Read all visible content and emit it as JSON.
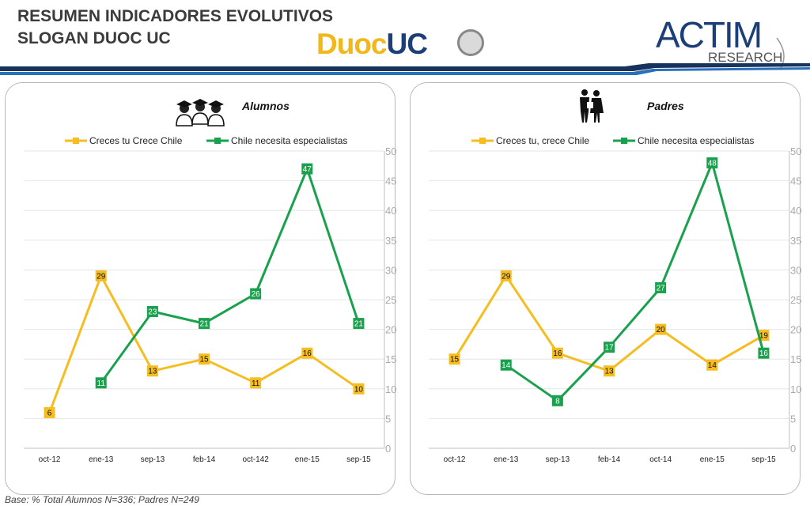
{
  "header": {
    "title_line1": "RESUMEN INDICADORES EVOLUTIVOS",
    "title_line2": "SLOGAN DUOC UC",
    "duoc_logo_part1": "Duoc",
    "duoc_logo_part2": "UC",
    "actim_logo_main": "ACTIM",
    "actim_logo_sub": "RESEARCH"
  },
  "footer": {
    "base_note": "Base: % Total Alumnos  N=336;  Padres N=249"
  },
  "colors": {
    "yellow": "#f5bd1f",
    "green": "#1aa14e",
    "navy": "#16335e",
    "accent_blue": "#2a6fba"
  },
  "chart_data": [
    {
      "type": "line",
      "title": "Alumnos",
      "categories": [
        "oct-12",
        "ene-13",
        "sep-13",
        "feb-14",
        "oct-142",
        "ene-15",
        "sep-15"
      ],
      "series": [
        {
          "name": "Creces tu Crece Chile",
          "color": "#f5bd1f",
          "values": [
            6,
            29,
            13,
            15,
            11,
            16,
            10
          ]
        },
        {
          "name": "Chile necesita especialistas",
          "color": "#1aa14e",
          "values": [
            null,
            11,
            23,
            21,
            26,
            47,
            21
          ]
        }
      ],
      "ylim": [
        0,
        50
      ],
      "yticks": [
        0,
        5,
        10,
        15,
        20,
        25,
        30,
        35,
        40,
        45,
        50
      ],
      "grid": true,
      "legend": "top"
    },
    {
      "type": "line",
      "title": "Padres",
      "categories": [
        "oct-12",
        "ene-13",
        "sep-13",
        "feb-14",
        "oct-14",
        "ene-15",
        "sep-15"
      ],
      "series": [
        {
          "name": "Creces tu, crece Chile",
          "color": "#f5bd1f",
          "values": [
            15,
            29,
            16,
            13,
            20,
            14,
            19
          ]
        },
        {
          "name": "Chile necesita especialistas",
          "color": "#1aa14e",
          "values": [
            null,
            14,
            8,
            17,
            27,
            48,
            16
          ]
        }
      ],
      "ylim": [
        0,
        50
      ],
      "yticks": [
        0,
        5,
        10,
        15,
        20,
        25,
        30,
        35,
        40,
        45,
        50
      ],
      "grid": true,
      "legend": "top"
    }
  ]
}
